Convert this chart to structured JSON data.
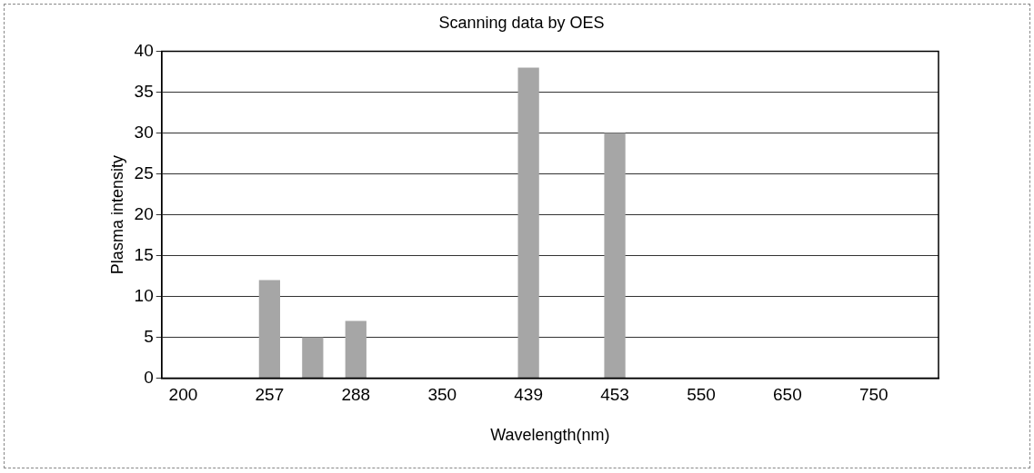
{
  "chart_data": {
    "type": "bar",
    "title": "Scanning data by OES",
    "xlabel": "Wavelength(nm)",
    "ylabel": "Plasma intensity",
    "categories": [
      "200",
      null,
      "257",
      null,
      "288",
      null,
      "350",
      null,
      "439",
      null,
      "453",
      null,
      "550",
      null,
      "650",
      null,
      "750",
      null
    ],
    "values": [
      0,
      0,
      12,
      5,
      7,
      0,
      0,
      0,
      38,
      0,
      30,
      0,
      0,
      0,
      0,
      0,
      0,
      0
    ],
    "color": "#a6a6a6",
    "ylim": [
      0,
      40
    ],
    "yticks": [
      0,
      5,
      10,
      15,
      20,
      25,
      30,
      35,
      40
    ],
    "grid": "y",
    "legend": false
  }
}
